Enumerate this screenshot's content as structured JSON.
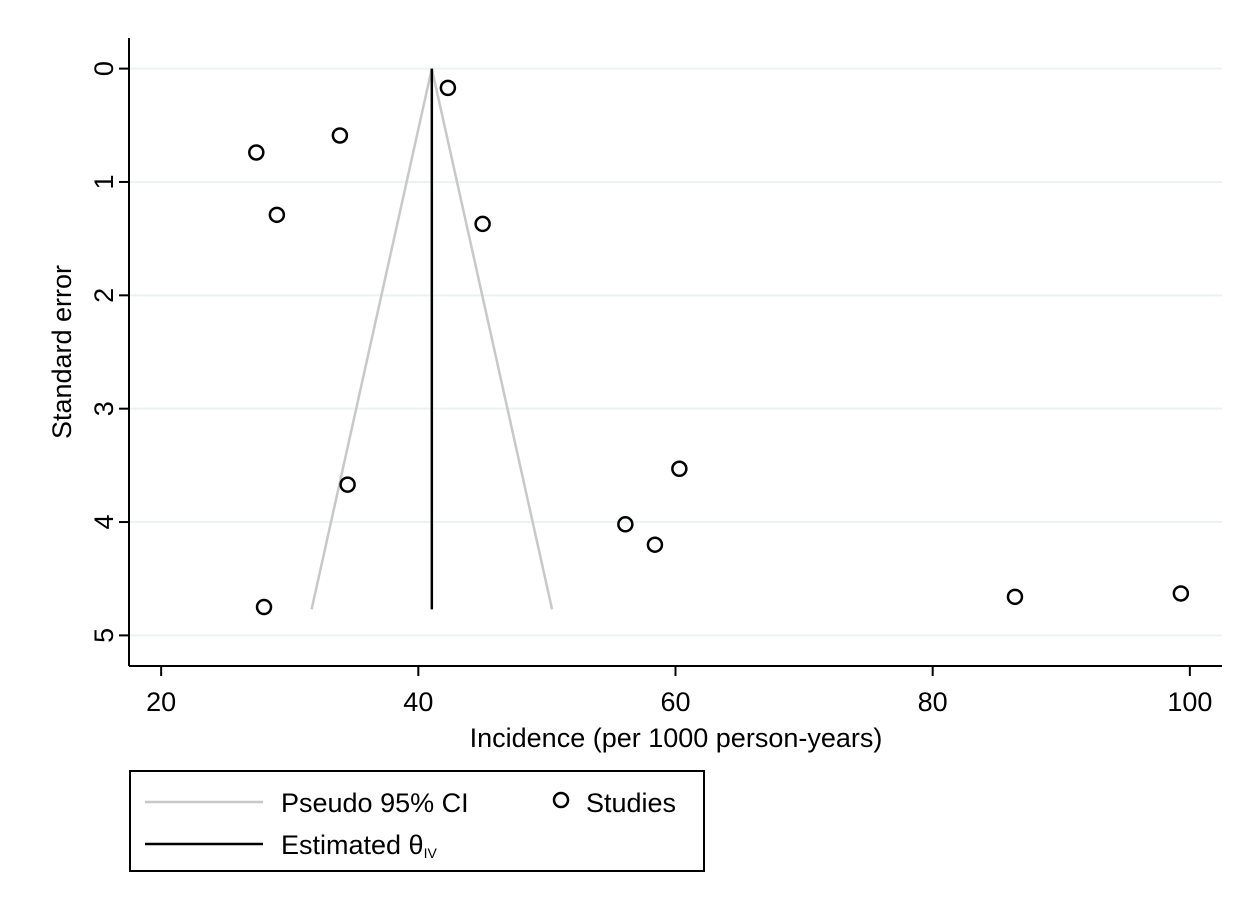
{
  "chart_data": {
    "type": "scatter",
    "title": "",
    "xlabel": "Incidence (per 1000 person-years)",
    "ylabel": "Standard error",
    "xlim": [
      17.5,
      102.5
    ],
    "ylim": [
      -0.27,
      5.27
    ],
    "y_reversed": true,
    "xticks": [
      20,
      40,
      60,
      80,
      100
    ],
    "yticks": [
      0,
      1,
      2,
      3,
      4,
      5
    ],
    "grid": true,
    "legend_position": "bottom-left",
    "series": [
      {
        "name": "Studies",
        "kind": "points",
        "marker": "hollow-circle",
        "color": "#000000",
        "points": [
          {
            "x": 42.3,
            "y": 0.17
          },
          {
            "x": 33.9,
            "y": 0.59
          },
          {
            "x": 27.4,
            "y": 0.74
          },
          {
            "x": 29.0,
            "y": 1.29
          },
          {
            "x": 45.0,
            "y": 1.37
          },
          {
            "x": 60.3,
            "y": 3.53
          },
          {
            "x": 34.5,
            "y": 3.67
          },
          {
            "x": 56.1,
            "y": 4.02
          },
          {
            "x": 58.4,
            "y": 4.2
          },
          {
            "x": 86.4,
            "y": 4.66
          },
          {
            "x": 99.3,
            "y": 4.63
          },
          {
            "x": 28.0,
            "y": 4.75
          }
        ]
      },
      {
        "name": "Pseudo 95% CI",
        "kind": "lines",
        "color": "#c8c8c8",
        "lines": [
          [
            {
              "x": 41.05,
              "y": 0
            },
            {
              "x": 31.7,
              "y": 4.77
            }
          ],
          [
            {
              "x": 41.05,
              "y": 0
            },
            {
              "x": 50.4,
              "y": 4.77
            }
          ]
        ]
      },
      {
        "name": "Estimated θIV",
        "kind": "lines",
        "color": "#000000",
        "lines": [
          [
            {
              "x": 41.05,
              "y": 0
            },
            {
              "x": 41.05,
              "y": 4.77
            }
          ]
        ]
      }
    ]
  },
  "legend": {
    "ci_label": "Pseudo 95% CI",
    "studies_label": "Studies",
    "estimate_label_main": "Estimated θ",
    "estimate_label_sub": "IV"
  }
}
